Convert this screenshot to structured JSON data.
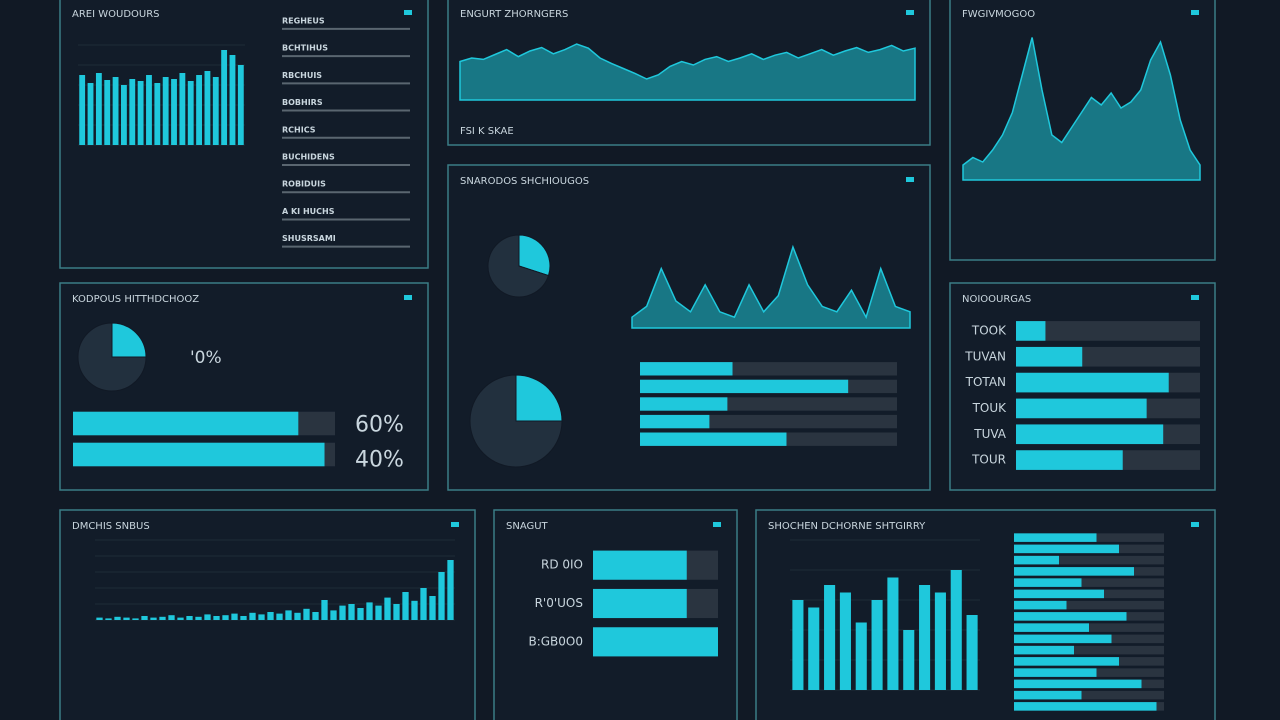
{
  "panels": [
    {
      "title": "AREI WOUDOURS",
      "charts": [
        {
          "type": "bar",
          "values": [
            70,
            62,
            72,
            65,
            68,
            60,
            66,
            64,
            70,
            62,
            68,
            66,
            72,
            64,
            70,
            74,
            68,
            95,
            90,
            80
          ]
        },
        {
          "type": "list",
          "items": [
            "REGHEUS",
            "BCHTIHUS",
            "RBCHUIS",
            "BOBHIRS",
            "RCHICS",
            "BUCHIDENS",
            "ROBIDUIS",
            "A KI HUCHS",
            "SHUSRSAMI"
          ]
        }
      ]
    },
    {
      "title": "ENGURT ZHORNGERS",
      "charts": [
        {
          "type": "area",
          "values": [
            55,
            60,
            58,
            65,
            72,
            62,
            70,
            75,
            66,
            72,
            80,
            74,
            60,
            52,
            45,
            38,
            30,
            36,
            48,
            55,
            50,
            58,
            62,
            55,
            60,
            66,
            58,
            64,
            68,
            60,
            66,
            72,
            64,
            70,
            75,
            68,
            72,
            78,
            70,
            74
          ]
        },
        {
          "type": "labels",
          "texts": [
            "FSI K SKAE"
          ]
        }
      ]
    },
    {
      "title": "FWGIVMOGOO",
      "charts": [
        {
          "type": "area",
          "values": [
            10,
            15,
            12,
            20,
            30,
            45,
            70,
            95,
            60,
            30,
            25,
            35,
            45,
            55,
            50,
            58,
            48,
            52,
            60,
            80,
            92,
            70,
            40,
            20,
            10
          ]
        }
      ]
    },
    {
      "title": "KODPOUS HITTHDCHOOZ",
      "charts": [
        {
          "type": "pie",
          "values": [
            25,
            75
          ]
        },
        {
          "type": "labels",
          "texts": [
            "'0%"
          ]
        },
        {
          "type": "hbar",
          "values": [
            86,
            96
          ]
        },
        {
          "type": "labels",
          "texts": [
            "60%",
            "40%"
          ]
        }
      ]
    },
    {
      "title": "SNARODOS SHCHIOUGOS",
      "charts": [
        {
          "type": "pie",
          "values": [
            30,
            70
          ]
        },
        {
          "type": "pie",
          "values": [
            25,
            75
          ]
        },
        {
          "type": "area",
          "values": [
            10,
            20,
            55,
            25,
            15,
            40,
            15,
            10,
            40,
            15,
            30,
            75,
            40,
            20,
            15,
            35,
            10,
            55,
            20,
            15
          ]
        },
        {
          "type": "hbar",
          "values": [
            36,
            81,
            34,
            27,
            57
          ]
        }
      ]
    },
    {
      "title": "NOIOOURGAS",
      "charts": [
        {
          "type": "hbar",
          "values": [
            16,
            36,
            83,
            71,
            80,
            58
          ],
          "labels": [
            "TOOK",
            "TUVAN",
            "TOTAN",
            "TOUK",
            "TUVA",
            "TOUR"
          ]
        }
      ]
    },
    {
      "title": "DMCHIS SNBUS",
      "charts": [
        {
          "type": "bar",
          "values": [
            3,
            2,
            4,
            3,
            2,
            5,
            3,
            4,
            6,
            3,
            5,
            4,
            7,
            5,
            6,
            8,
            5,
            9,
            7,
            10,
            8,
            12,
            9,
            14,
            10,
            25,
            12,
            18,
            20,
            15,
            22,
            18,
            28,
            20,
            35,
            24,
            40,
            30,
            60,
            75
          ]
        }
      ]
    },
    {
      "title": "SNAGUT",
      "charts": [
        {
          "type": "hbar",
          "values": [
            75,
            75,
            100
          ],
          "labels": [
            "RD 0IO",
            "R'0'UOS",
            "B:GB0O0"
          ]
        }
      ]
    },
    {
      "title": "SHOCHEN DCHORNE SHTGIRRY",
      "charts": [
        {
          "type": "bar",
          "values": [
            60,
            55,
            70,
            65,
            45,
            60,
            75,
            40,
            70,
            65,
            80,
            50
          ]
        },
        {
          "type": "hbar",
          "values": [
            55,
            70,
            30,
            80,
            45,
            60,
            35,
            75,
            50,
            65,
            40,
            70,
            55,
            85,
            45,
            95
          ]
        }
      ]
    }
  ]
}
